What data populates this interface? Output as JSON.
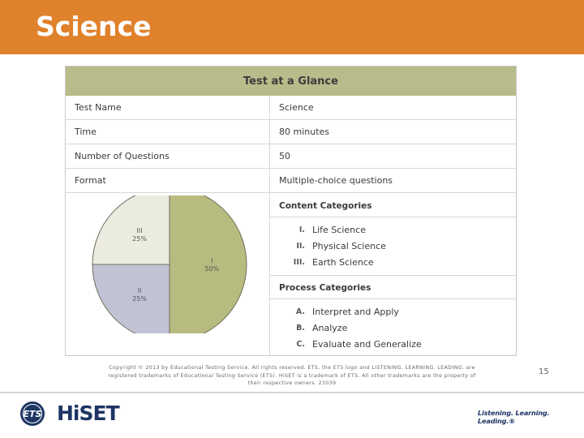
{
  "header": {
    "title": "Science"
  },
  "glance": {
    "title": "Test at a Glance",
    "rows": [
      {
        "label": "Test Name",
        "value": "Science"
      },
      {
        "label": "Time",
        "value": "80 minutes"
      },
      {
        "label": "Number of Questions",
        "value": "50"
      },
      {
        "label": "Format",
        "value": "Multiple-choice questions"
      }
    ],
    "content_categories": {
      "heading": "Content Categories",
      "items": [
        {
          "num": "I.",
          "label": "Life Science"
        },
        {
          "num": "II.",
          "label": "Physical Science"
        },
        {
          "num": "III.",
          "label": "Earth Science"
        }
      ]
    },
    "process_categories": {
      "heading": "Process Categories",
      "items": [
        {
          "num": "A.",
          "label": "Interpret and Apply"
        },
        {
          "num": "B.",
          "label": "Analyze"
        },
        {
          "num": "C.",
          "label": "Evaluate and Generalize"
        }
      ]
    }
  },
  "chart_data": {
    "type": "pie",
    "slices": [
      {
        "label": "I",
        "percent_label": "50%",
        "value": 50,
        "color": "#b8bb7f"
      },
      {
        "label": "II",
        "percent_label": "25%",
        "value": 25,
        "color": "#c1c2d4"
      },
      {
        "label": "III",
        "percent_label": "25%",
        "value": 25,
        "color": "#ecebdf"
      }
    ]
  },
  "footer": {
    "copyright_line1": "Copyright © 2013 by Educational Testing Service. All rights reserved. ETS, the ETS logo and LISTENING. LEARNING. LEADING. are",
    "copyright_line2": "registered trademarks of Educational Testing Service (ETS). HiSET is a trademark of ETS. All other trademarks are the property of",
    "copyright_line3": "their respective owners. 23039",
    "page_number": "15",
    "logo_ets": "ETS",
    "logo_hiset": "HiSET",
    "tagline": "Listening. Learning. Leading.®"
  },
  "colors": {
    "header_bg": "#e0812b",
    "table_header_bg": "#b8bb8a",
    "brand_navy": "#1e3564"
  }
}
